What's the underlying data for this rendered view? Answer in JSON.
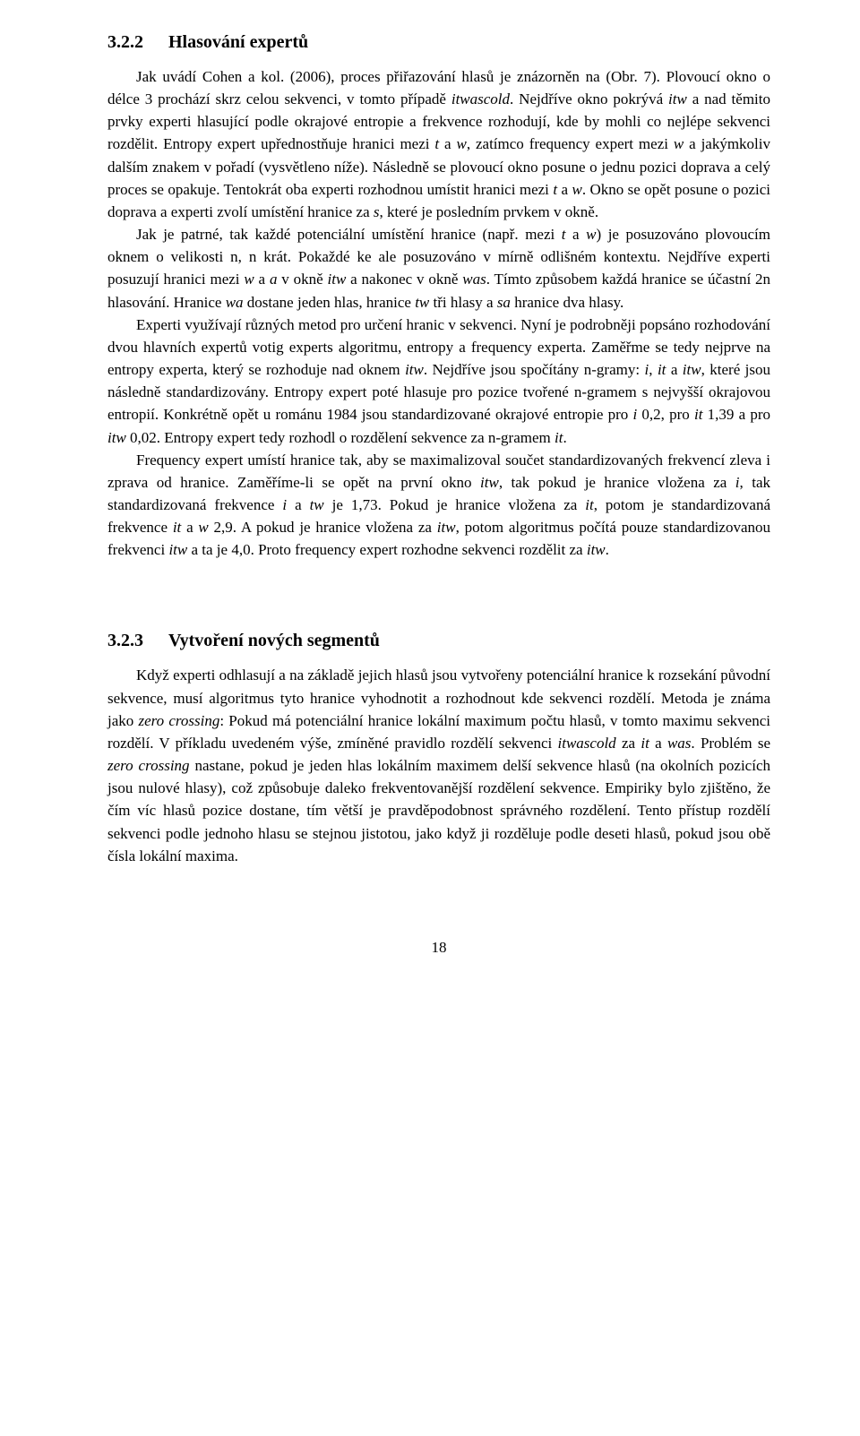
{
  "section1": {
    "number": "3.2.2",
    "title": "Hlasování expertů",
    "paragraphs": {
      "p1_a": "Jak uvádí Cohen a kol. (2006), proces přiřazování hlasů je znázorněn na (Obr. 7). Plovoucí okno o délce 3 prochází skrz celou sekvenci, v tomto případě ",
      "p1_b": ". Nejdříve okno pokrývá ",
      "p1_c": " a nad těmito prvky experti hlasující podle okrajové entropie a frekvence rozhodují, kde by mohli co nejlépe sekvenci rozdělit. Entropy expert upřednostňuje hranici mezi ",
      "p1_d": " a ",
      "p1_e": ", zatímco frequency expert mezi ",
      "p1_f": " a jakýmkoliv dalším znakem v pořadí (vysvětleno níže). Následně se plovoucí okno posune o jednu pozici doprava a celý proces se opakuje. Tentokrát oba experti rozhodnou umístit hranici mezi ",
      "p1_g": " a ",
      "p1_h": ". Okno se opět posune o pozici doprava a experti zvolí umístění hranice za ",
      "p1_i": ", které je posledním prvkem v okně.",
      "p2_a": "Jak je patrné, tak každé potenciální umístění hranice (např. mezi ",
      "p2_b": " a ",
      "p2_c": ") je posuzováno plovoucím oknem o velikosti n, n krát. Pokaždé ke ale posuzováno v mírně odlišném kontextu. Nejdříve experti posuzují hranici mezi ",
      "p2_d": " a ",
      "p2_e": " v okně ",
      "p2_f": " a nakonec v okně ",
      "p2_g": ". Tímto způsobem každá hranice se účastní 2n hlasování. Hranice ",
      "p2_h": " dostane jeden hlas, hranice ",
      "p2_i": " tři hlasy a ",
      "p2_j": " hranice dva hlasy.",
      "p3_a": "Experti využívají různých metod pro určení hranic v sekvenci. Nyní je podrobněji popsáno rozhodování dvou hlavních expertů votig experts algoritmu, entropy a frequency experta. Zaměřme se tedy nejprve na entropy experta, který se rozhoduje nad oknem ",
      "p3_b": ". Nejdříve jsou spočítány n-gramy: ",
      "p3_c": ", ",
      "p3_d": " a ",
      "p3_e": ", které jsou následně standardizovány. Entropy expert poté hlasuje pro pozice tvořené n-gramem s nejvyšší okrajovou entropií. Konkrétně opět u románu 1984 jsou standardizované okrajové entropie pro ",
      "p3_f": " 0,2, pro ",
      "p3_g": " 1,39 a pro ",
      "p3_h": " 0,02. Entropy expert tedy rozhodl o rozdělení sekvence za n-gramem ",
      "p3_i": ".",
      "p4_a": "Frequency expert umístí hranice tak, aby se maximalizoval součet standardizovaných frekvencí zleva i zprava od hranice. Zaměříme-li se opět na první okno ",
      "p4_b": ", tak pokud je hranice vložena za ",
      "p4_c": ", tak standardizovaná frekvence ",
      "p4_d": " a ",
      "p4_e": " je 1,73. Pokud je hranice vložena za ",
      "p4_f": ", potom je standardizovaná frekvence ",
      "p4_g": " a ",
      "p4_h": " 2,9. A pokud je hranice vložena za ",
      "p4_i": ", potom algoritmus počítá pouze standardizovanou frekvenci ",
      "p4_j": " a ta je 4,0. Proto frequency expert rozhodne sekvenci rozdělit za ",
      "p4_k": "."
    },
    "italic": {
      "itwascold": "itwascold",
      "itw": "itw",
      "t": "t",
      "w": "w",
      "s": "s",
      "a": "a",
      "was": "was",
      "wa": "wa",
      "tw": "tw",
      "sa": "sa",
      "i": "i",
      "it": "it"
    }
  },
  "section2": {
    "number": "3.2.3",
    "title": "Vytvoření nových segmentů",
    "p1_a": "Když experti odhlasují a na základě jejich hlasů jsou vytvořeny potenciální hranice k rozsekání původní sekvence, musí algoritmus tyto hranice vyhodnotit a rozhodnout kde sekvenci rozdělí. Metoda je známa jako ",
    "p1_b": ": Pokud má potenciální hranice lokální maximum počtu hlasů, v tomto maximu sekvenci rozdělí. V příkladu uvedeném výše, zmíněné pravidlo rozdělí sekvenci ",
    "p1_c": " za ",
    "p1_d": " a ",
    "p1_e": ". Problém se ",
    "p1_f": " nastane, pokud je jeden hlas lokálním maximem delší sekvence hlasů (na okolních pozicích jsou nulové hlasy), což způsobuje daleko frekventovanější rozdělení sekvence. Empiriky bylo zjištěno, že čím víc hlasů pozice dostane, tím větší je pravděpodobnost správného rozdělení. Tento přístup rozdělí sekvenci podle jednoho hlasu se stejnou jistotou, jako když ji rozděluje podle deseti hlasů, pokud jsou obě čísla lokální maxima.",
    "italic": {
      "zero_crossing": "zero crossing",
      "itwascold": "itwascold",
      "it": "it",
      "was": "was"
    }
  },
  "page_number": "18"
}
